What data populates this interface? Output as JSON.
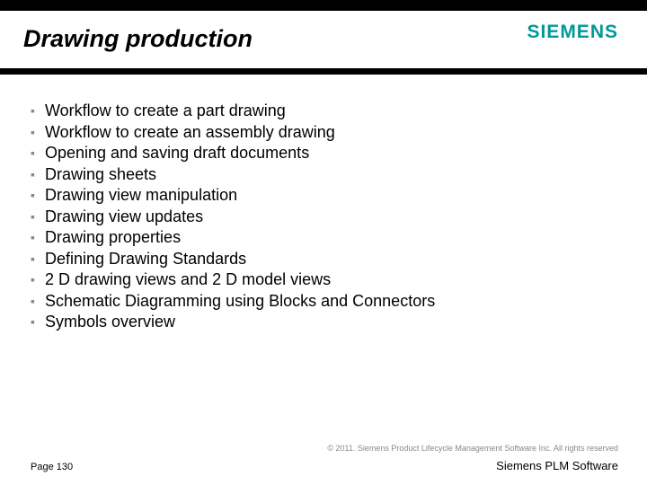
{
  "colors": {
    "bar": "#000000",
    "background": "#ffffff",
    "bullet": "#888888",
    "text": "#000000",
    "muted": "#888888",
    "logo": "#009999"
  },
  "typography": {
    "title_fontsize": 27,
    "title_style": "bold italic",
    "body_fontsize": 18,
    "footer_fontsize": 11,
    "copyright_fontsize": 9,
    "logo_fontsize": 21
  },
  "header": {
    "logo": "SIEMENS",
    "title": "Drawing production"
  },
  "bullets": [
    "Workflow to create a part drawing",
    "Workflow to create an assembly drawing",
    "Opening and saving draft documents",
    "Drawing sheets",
    "Drawing view manipulation",
    "Drawing view updates",
    "Drawing properties",
    "Defining Drawing Standards",
    "2 D drawing views and 2 D model views",
    "Schematic Diagramming using Blocks and Connectors",
    "Symbols overview"
  ],
  "footer": {
    "copyright": "© 2011. Siemens Product Lifecycle Management Software Inc. All rights reserved",
    "page": "Page 130",
    "brand": "Siemens PLM Software"
  }
}
